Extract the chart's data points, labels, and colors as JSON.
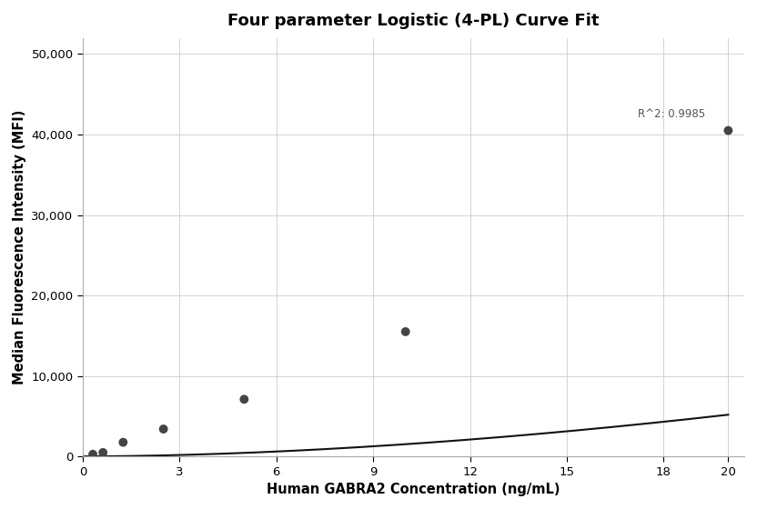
{
  "title": "Four parameter Logistic (4-PL) Curve Fit",
  "xlabel": "Human GABRA2 Concentration (ng/mL)",
  "ylabel": "Median Fluorescence Intensity (MFI)",
  "scatter_x": [
    0.312,
    0.625,
    1.25,
    2.5,
    5.0,
    10.0,
    20.0
  ],
  "scatter_y": [
    270,
    480,
    1750,
    3400,
    7100,
    15500,
    40500
  ],
  "xlim": [
    0,
    20.5
  ],
  "ylim": [
    0,
    52000
  ],
  "yticks": [
    0,
    10000,
    20000,
    30000,
    40000,
    50000
  ],
  "xticks": [
    0,
    3,
    6,
    9,
    12,
    15,
    18,
    20
  ],
  "r_squared": "R^2: 0.9985",
  "r2_x": 17.2,
  "r2_y": 42200,
  "dot_color": "#444444",
  "line_color": "#111111",
  "bg_color": "#ffffff",
  "grid_color": "#cccccc",
  "title_fontsize": 13,
  "label_fontsize": 10.5,
  "tick_fontsize": 9.5,
  "4pl_A": 0,
  "4pl_B": 1.6,
  "4pl_C": 100,
  "4pl_D": 160000
}
